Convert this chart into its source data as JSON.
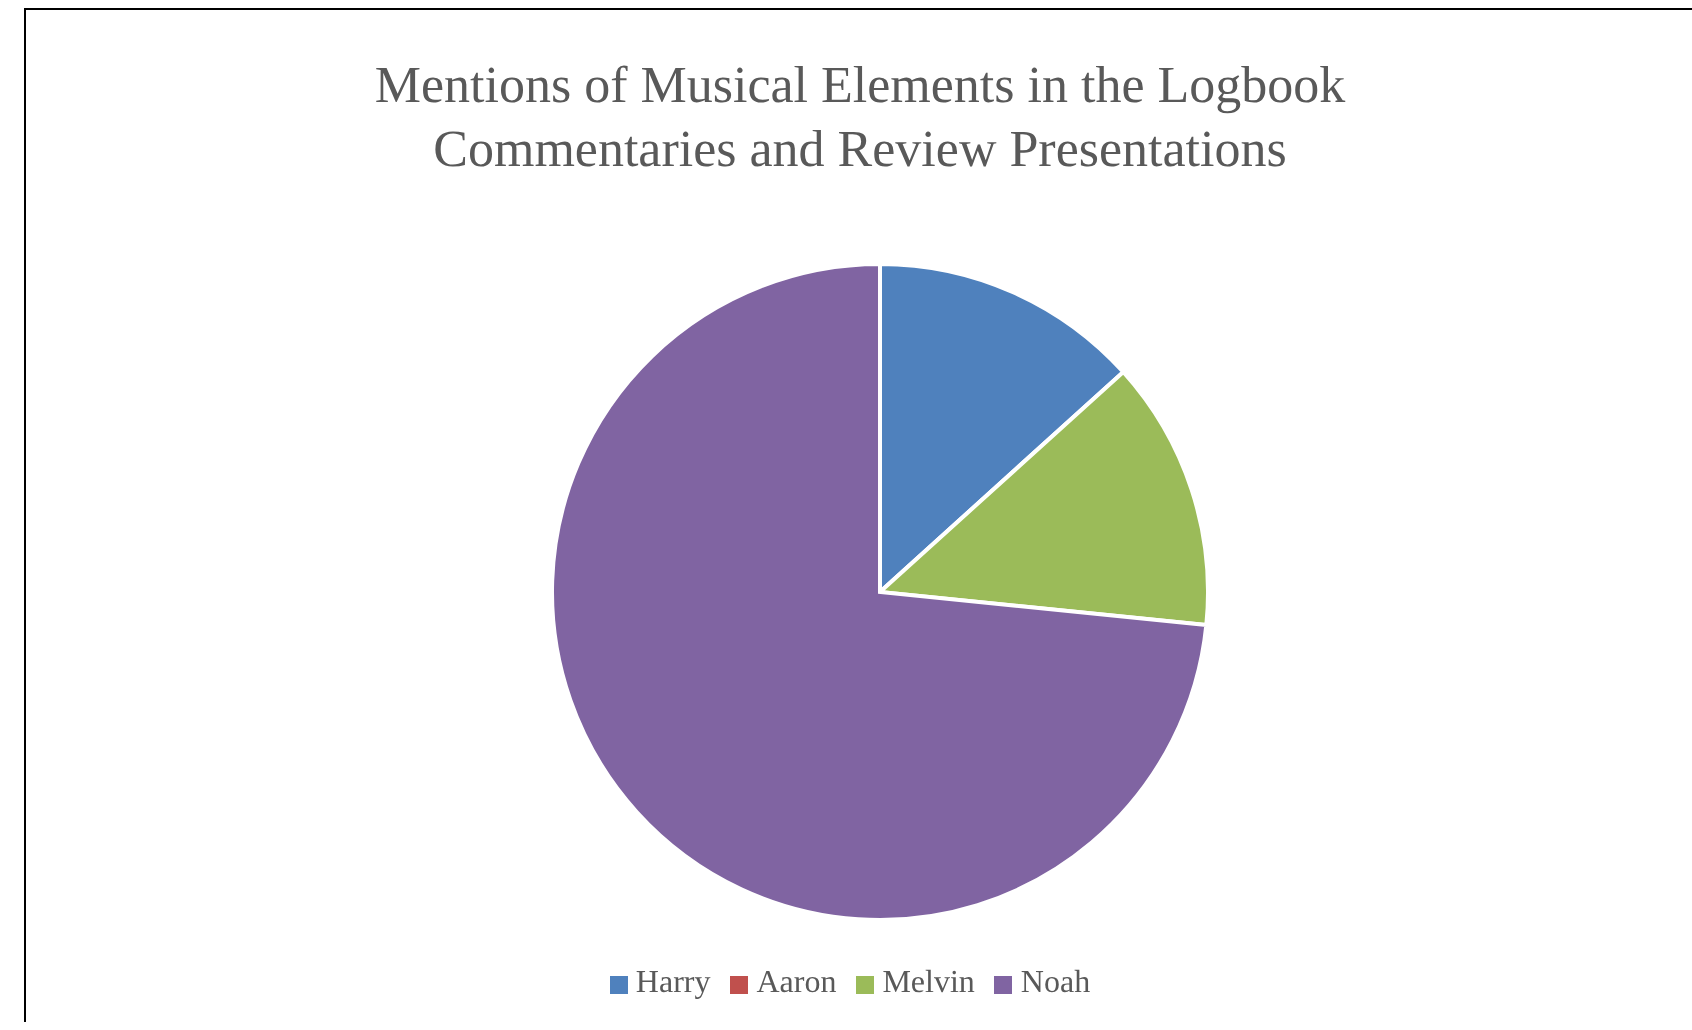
{
  "chart_data": {
    "type": "pie",
    "title": "Mentions of Musical Elements in the Logbook Commentaries and Review Presentations",
    "categories": [
      "Harry",
      "Aaron",
      "Melvin",
      "Noah"
    ],
    "values": [
      13.3,
      0,
      13.3,
      73.4
    ],
    "colors": [
      "#4f81bd",
      "#c0504d",
      "#9bbb59",
      "#8064a2"
    ],
    "legend": "bottom"
  }
}
